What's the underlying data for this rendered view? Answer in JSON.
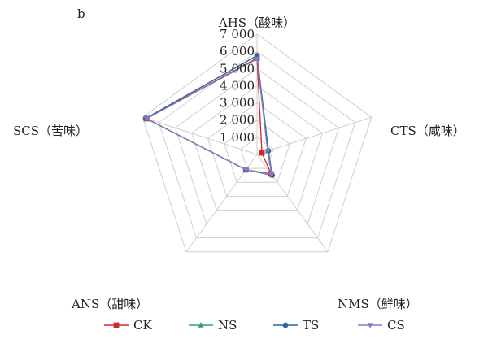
{
  "chart_data": {
    "type": "radar",
    "panel_label": "b",
    "axes": [
      "AHS（酸味）",
      "CTS（咸味）",
      "NMS（鲜味）",
      "ANS（甜味）",
      "SCS（苦味）"
    ],
    "rmax": 7000,
    "ticks": [
      1000,
      2000,
      3000,
      4000,
      5000,
      6000,
      7000
    ],
    "tick_labels": [
      "1 000",
      "2 000",
      "3 000",
      "4 000",
      "5 000",
      "6 000",
      "7 000"
    ],
    "grid": true,
    "legend_position": "bottom",
    "series": [
      {
        "name": "CK",
        "color": "#d62728",
        "marker": "square",
        "values": [
          5600,
          300,
          1400,
          1100,
          6750
        ]
      },
      {
        "name": "NS",
        "color": "#2ca089",
        "marker": "triangle",
        "values": [
          5750,
          650,
          1450,
          1100,
          6800
        ]
      },
      {
        "name": "TS",
        "color": "#2b6a9e",
        "marker": "circle",
        "values": [
          5750,
          700,
          1500,
          1100,
          6800
        ]
      },
      {
        "name": "CS",
        "color": "#8a78c0",
        "marker": "triangle-down",
        "values": [
          5550,
          650,
          1450,
          1100,
          6750
        ]
      }
    ]
  }
}
